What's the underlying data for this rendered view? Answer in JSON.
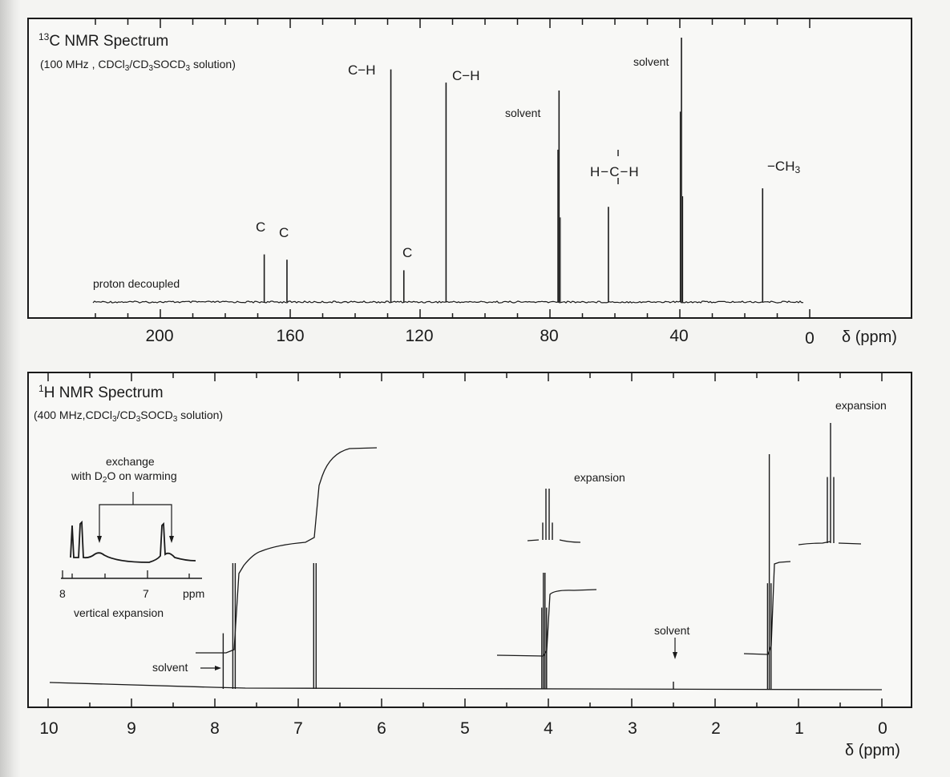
{
  "figures": {
    "c13": {
      "title_sup": "13",
      "title": "C NMR Spectrum",
      "subtitle_a": "(100 MHz , CDCl",
      "subtitle_b": "/CD",
      "subtitle_c": "SOCD",
      "subtitle_d": " solution)",
      "sub3": "3",
      "baseline_label": "proton decoupled",
      "axis_title": "δ (ppm)",
      "peak_labels": {
        "c1": "C",
        "c2": "C",
        "c3": "C",
        "ch1": "C−H",
        "ch2": "C−H",
        "solvent1": "solvent",
        "solvent2": "solvent",
        "ch2_group": "H−C−H",
        "ch3_prefix": "−CH",
        "ch3_sub": "3"
      }
    },
    "h1": {
      "title_sup": "1",
      "title": "H NMR Spectrum",
      "subtitle_a": "(400 MHz,CDCl",
      "subtitle_b": "/CD",
      "subtitle_c": "SOCD",
      "subtitle_d": " solution)",
      "sub3": "3",
      "axis_title": "δ (ppm)",
      "exchange_line1": "exchange",
      "exchange_line2a": "with D",
      "exchange_sub": "2",
      "exchange_line2b": "O  on warming",
      "inset_tick_8": "8",
      "inset_tick_7": "7",
      "inset_unit": "ppm",
      "inset_caption": "vertical expansion",
      "solvent_left": "solvent",
      "solvent_right": "solvent",
      "expansion_1": "expansion",
      "expansion_2": "expansion"
    }
  },
  "chart_data": [
    {
      "type": "line",
      "title": "13C NMR Spectrum",
      "subtitle": "(100 MHz , CDCl3/CD3SOCD3 solution)",
      "xlabel": "δ (ppm)",
      "x_reversed": true,
      "xlim": [
        220,
        0
      ],
      "x_ticks": [
        200,
        160,
        120,
        80,
        40,
        0
      ],
      "annotation": "proton decoupled",
      "peaks": [
        {
          "ppm": 168,
          "relative_height": 0.18,
          "label": "C"
        },
        {
          "ppm": 161,
          "relative_height": 0.16,
          "label": "C"
        },
        {
          "ppm": 129,
          "relative_height": 0.88,
          "label": "C−H"
        },
        {
          "ppm": 125,
          "relative_height": 0.12,
          "label": "C"
        },
        {
          "ppm": 112,
          "relative_height": 0.83,
          "label": "C−H"
        },
        {
          "ppm": 77.2,
          "relative_height": 0.8,
          "label": "solvent"
        },
        {
          "ppm": 62,
          "relative_height": 0.36,
          "label": "H−C−H"
        },
        {
          "ppm": 39.5,
          "relative_height": 1.0,
          "label": "solvent"
        },
        {
          "ppm": 14.5,
          "relative_height": 0.43,
          "label": "−CH3"
        }
      ]
    },
    {
      "type": "line",
      "title": "1H NMR Spectrum",
      "subtitle": "(400 MHz,CDCl3/CD3SOCD3 solution)",
      "xlabel": "δ (ppm)",
      "x_reversed": true,
      "xlim": [
        10,
        0
      ],
      "x_ticks": [
        10,
        9,
        8,
        7,
        6,
        5,
        4,
        3,
        2,
        1,
        0
      ],
      "peaks": [
        {
          "ppm": 7.9,
          "relative_height": 0.23,
          "label": "solvent"
        },
        {
          "ppm": 7.77,
          "relative_height": 0.52,
          "multiplicity": "d"
        },
        {
          "ppm": 6.8,
          "relative_height": 0.52,
          "multiplicity": "d"
        },
        {
          "ppm": 4.05,
          "relative_height": 0.48,
          "multiplicity": "q",
          "expansion": true
        },
        {
          "ppm": 2.5,
          "relative_height": 0.03,
          "label": "solvent"
        },
        {
          "ppm": 1.35,
          "relative_height": 0.97,
          "multiplicity": "t",
          "expansion": true
        }
      ],
      "integration_steps": [
        {
          "region": [
            7.9,
            6.6
          ],
          "height": 0.79
        },
        {
          "region": [
            4.1,
            4.0
          ],
          "height": 0.23
        },
        {
          "region": [
            1.4,
            1.3
          ],
          "height": 0.45
        }
      ],
      "inset": {
        "caption": "vertical expansion",
        "x_ticks": [
          8,
          7
        ],
        "unit": "ppm",
        "note": "exchange with D2O on warming",
        "broad_peaks_ppm": [
          7.6,
          7.1
        ]
      }
    }
  ]
}
